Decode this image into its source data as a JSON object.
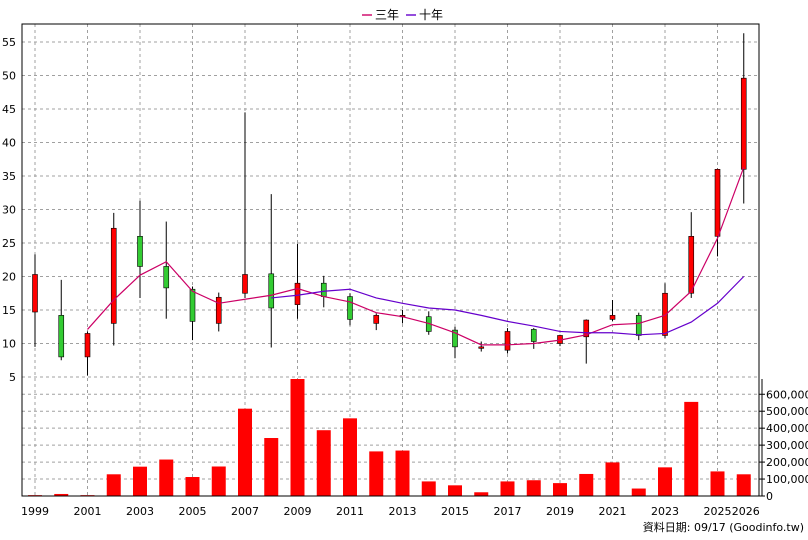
{
  "chart_data": {
    "type": "candlestick",
    "legend": {
      "position": "top-center",
      "items": [
        {
          "name": "三年",
          "color": "#cc0066"
        },
        {
          "name": "十年",
          "color": "#6600cc"
        }
      ]
    },
    "price_axis": {
      "ticks": [
        5,
        10,
        15,
        20,
        25,
        30,
        35,
        40,
        45,
        50,
        55
      ],
      "range": [
        2,
        57
      ]
    },
    "volume_axis": {
      "ticks": [
        "600,000",
        "500,000",
        "400,000",
        "300,000",
        "200,000",
        "100,000",
        "0"
      ],
      "range": [
        0,
        690000
      ]
    },
    "x_tick_labels": [
      "1999",
      "2001",
      "2003",
      "2005",
      "2007",
      "2009",
      "2011",
      "2013",
      "2015",
      "2017",
      "2019",
      "2021",
      "2023",
      "2025",
      "2026"
    ],
    "grid": true,
    "colors": {
      "up": "#ff0000",
      "down": "#33cc33",
      "volume": "#ff0000",
      "grid": "#a0a0a0"
    },
    "candles": [
      {
        "year": 1999,
        "open": 14.7,
        "high": 23.3,
        "low": 9.5,
        "close": 20.3
      },
      {
        "year": 2000,
        "open": 14.2,
        "high": 19.5,
        "low": 7.5,
        "close": 8.0
      },
      {
        "year": 2001,
        "open": 8.0,
        "high": 11.8,
        "low": 5.2,
        "close": 11.5
      },
      {
        "year": 2002,
        "open": 13.0,
        "high": 29.5,
        "low": 9.7,
        "close": 27.2
      },
      {
        "year": 2003,
        "open": 26.0,
        "high": 31.3,
        "low": 16.8,
        "close": 21.5
      },
      {
        "year": 2004,
        "open": 21.5,
        "high": 28.2,
        "low": 13.7,
        "close": 18.3
      },
      {
        "year": 2005,
        "open": 18.1,
        "high": 18.5,
        "low": 10.5,
        "close": 13.3
      },
      {
        "year": 2006,
        "open": 13.0,
        "high": 17.6,
        "low": 11.8,
        "close": 16.9
      },
      {
        "year": 2007,
        "open": 17.5,
        "high": 44.5,
        "low": 16.8,
        "close": 20.3
      },
      {
        "year": 2008,
        "open": 20.4,
        "high": 32.3,
        "low": 9.4,
        "close": 15.3
      },
      {
        "year": 2009,
        "open": 15.8,
        "high": 24.9,
        "low": 13.7,
        "close": 19.0
      },
      {
        "year": 2010,
        "open": 19.0,
        "high": 20.1,
        "low": 15.4,
        "close": 17.0
      },
      {
        "year": 2011,
        "open": 17.0,
        "high": 17.5,
        "low": 12.7,
        "close": 13.6
      },
      {
        "year": 2012,
        "open": 13.0,
        "high": 14.5,
        "low": 12.0,
        "close": 14.2
      },
      {
        "year": 2013,
        "open": 14.0,
        "high": 15.0,
        "low": 13.0,
        "close": 14.2
      },
      {
        "year": 2014,
        "open": 14.0,
        "high": 14.8,
        "low": 11.3,
        "close": 11.8
      },
      {
        "year": 2015,
        "open": 12.0,
        "high": 12.5,
        "low": 7.8,
        "close": 9.5
      },
      {
        "year": 2016,
        "open": 9.3,
        "high": 10.3,
        "low": 8.8,
        "close": 9.5
      },
      {
        "year": 2017,
        "open": 9.0,
        "high": 12.3,
        "low": 8.5,
        "close": 11.8
      },
      {
        "year": 2018,
        "open": 12.1,
        "high": 12.3,
        "low": 9.2,
        "close": 10.3
      },
      {
        "year": 2019,
        "open": 10.0,
        "high": 11.3,
        "low": 9.6,
        "close": 11.2
      },
      {
        "year": 2020,
        "open": 11.0,
        "high": 13.6,
        "low": 7.0,
        "close": 13.5
      },
      {
        "year": 2021,
        "open": 13.6,
        "high": 16.5,
        "low": 13.3,
        "close": 14.2
      },
      {
        "year": 2022,
        "open": 14.2,
        "high": 14.6,
        "low": 10.5,
        "close": 11.2
      },
      {
        "year": 2023,
        "open": 11.2,
        "high": 19.0,
        "low": 10.8,
        "close": 17.5
      },
      {
        "year": 2024,
        "open": 17.5,
        "high": 29.6,
        "low": 16.8,
        "close": 26.0
      },
      {
        "year": 2025,
        "open": 26.0,
        "high": 36.1,
        "low": 23.0,
        "close": 36.0
      },
      {
        "year": 2026,
        "open": 36.0,
        "high": 56.3,
        "low": 30.9,
        "close": 49.6
      }
    ],
    "series": [
      {
        "name": "三年",
        "color": "#cc0066",
        "x": [
          2001,
          2002,
          2003,
          2004,
          2005,
          2006,
          2007,
          2008,
          2009,
          2010,
          2011,
          2012,
          2013,
          2014,
          2015,
          2016,
          2017,
          2018,
          2019,
          2020,
          2021,
          2022,
          2023,
          2024,
          2025,
          2026
        ],
        "values": [
          12.1,
          16.5,
          20.2,
          22.2,
          17.8,
          16.0,
          16.6,
          17.2,
          18.2,
          17.0,
          16.2,
          14.6,
          14.0,
          13.0,
          11.6,
          9.8,
          9.8,
          10.0,
          10.5,
          11.3,
          12.8,
          13.0,
          14.2,
          17.8,
          25.7,
          36.3
        ]
      },
      {
        "name": "十年",
        "color": "#6600cc",
        "x": [
          2008,
          2009,
          2010,
          2011,
          2012,
          2013,
          2014,
          2015,
          2016,
          2017,
          2018,
          2019,
          2020,
          2021,
          2022,
          2023,
          2024,
          2025,
          2026
        ],
        "values": [
          16.8,
          17.2,
          17.8,
          18.1,
          16.8,
          16.0,
          15.3,
          15.0,
          14.2,
          13.3,
          12.6,
          11.8,
          11.6,
          11.6,
          11.3,
          11.5,
          13.2,
          16.0,
          20.0
        ]
      }
    ],
    "volume": {
      "x": [
        1999,
        2000,
        2001,
        2002,
        2003,
        2004,
        2005,
        2006,
        2007,
        2008,
        2009,
        2010,
        2011,
        2012,
        2013,
        2014,
        2015,
        2016,
        2017,
        2018,
        2019,
        2020,
        2021,
        2022,
        2023,
        2024,
        2025,
        2026
      ],
      "values": [
        5000,
        12000,
        5000,
        128000,
        173000,
        215000,
        112000,
        174000,
        515000,
        342000,
        690000,
        388000,
        458000,
        263000,
        268000,
        86000,
        63000,
        22000,
        86000,
        93000,
        76000,
        130000,
        198000,
        44000,
        169000,
        555000,
        145000,
        128000
      ]
    }
  },
  "credit": "資料日期: 09/17  (Goodinfo.tw)"
}
